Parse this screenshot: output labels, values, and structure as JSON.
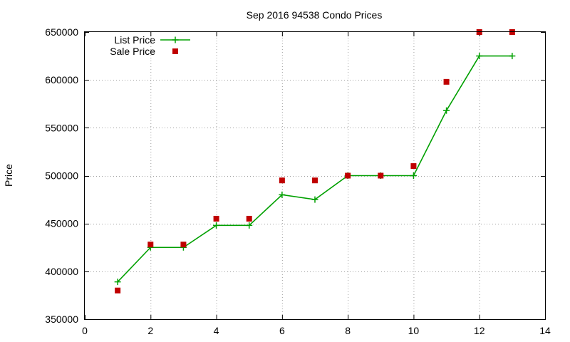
{
  "chart_data": {
    "type": "line",
    "title": "Sep 2016 94538 Condo Prices",
    "xlabel": "",
    "ylabel": "Price",
    "xlim": [
      0,
      14
    ],
    "ylim": [
      350000,
      650000
    ],
    "xticks": [
      0,
      2,
      4,
      6,
      8,
      10,
      12,
      14
    ],
    "yticks": [
      350000,
      400000,
      450000,
      500000,
      550000,
      600000,
      650000
    ],
    "grid": true,
    "legend_position": "top-left",
    "series": [
      {
        "name": "List Price",
        "style": "linespoints",
        "marker": "plus",
        "color": "#00a000",
        "x": [
          1,
          2,
          3,
          4,
          5,
          6,
          7,
          8,
          9,
          10,
          11,
          12,
          13
        ],
        "y": [
          389000,
          425000,
          425000,
          448000,
          448000,
          480000,
          475000,
          500000,
          500000,
          500000,
          568000,
          625000,
          625000
        ]
      },
      {
        "name": "Sale Price",
        "style": "points",
        "marker": "square",
        "color": "#c00000",
        "x": [
          1,
          2,
          3,
          4,
          5,
          6,
          7,
          8,
          9,
          10,
          11,
          12,
          13
        ],
        "y": [
          380000,
          428000,
          428000,
          455000,
          455000,
          495000,
          495000,
          500000,
          500000,
          510000,
          598000,
          650000,
          650000
        ]
      }
    ]
  }
}
